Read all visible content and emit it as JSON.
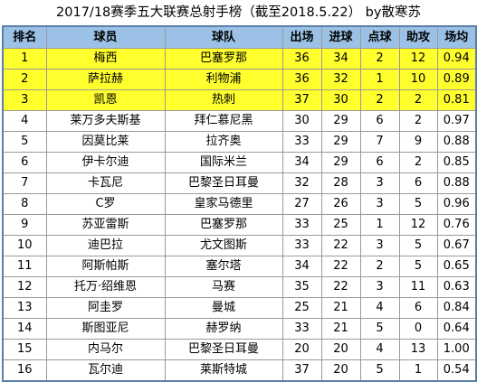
{
  "title": "2017/18赛季五大联赛总射手榜（截至2018.5.22） by散寒苏",
  "columns": [
    "排名",
    "球员",
    "球队",
    "出场",
    "进球",
    "点球",
    "助攻",
    "场均"
  ],
  "highlight_color": "#ffff2e",
  "header_color": "#9bc2e6",
  "rows": [
    {
      "rank": "1",
      "player": "梅西",
      "team": "巴塞罗那",
      "apps": "36",
      "goals": "34",
      "pens": "2",
      "assists": "12",
      "avg": "0.94",
      "hl": true
    },
    {
      "rank": "2",
      "player": "萨拉赫",
      "team": "利物浦",
      "apps": "36",
      "goals": "32",
      "pens": "1",
      "assists": "10",
      "avg": "0.89",
      "hl": true
    },
    {
      "rank": "3",
      "player": "凯恩",
      "team": "热刺",
      "apps": "37",
      "goals": "30",
      "pens": "2",
      "assists": "2",
      "avg": "0.81",
      "hl": true
    },
    {
      "rank": "4",
      "player": "莱万多夫斯基",
      "team": "拜仁慕尼黑",
      "apps": "30",
      "goals": "29",
      "pens": "6",
      "assists": "2",
      "avg": "0.97",
      "hl": false
    },
    {
      "rank": "5",
      "player": "因莫比莱",
      "team": "拉齐奥",
      "apps": "33",
      "goals": "29",
      "pens": "7",
      "assists": "9",
      "avg": "0.88",
      "hl": false
    },
    {
      "rank": "6",
      "player": "伊卡尔迪",
      "team": "国际米兰",
      "apps": "34",
      "goals": "29",
      "pens": "6",
      "assists": "2",
      "avg": "0.85",
      "hl": false
    },
    {
      "rank": "7",
      "player": "卡瓦尼",
      "team": "巴黎圣日耳曼",
      "apps": "32",
      "goals": "28",
      "pens": "3",
      "assists": "6",
      "avg": "0.88",
      "hl": false
    },
    {
      "rank": "8",
      "player": "C罗",
      "team": "皇家马德里",
      "apps": "27",
      "goals": "26",
      "pens": "3",
      "assists": "5",
      "avg": "0.96",
      "hl": false
    },
    {
      "rank": "9",
      "player": "苏亚雷斯",
      "team": "巴塞罗那",
      "apps": "33",
      "goals": "25",
      "pens": "1",
      "assists": "12",
      "avg": "0.76",
      "hl": false
    },
    {
      "rank": "10",
      "player": "迪巴拉",
      "team": "尤文图斯",
      "apps": "33",
      "goals": "22",
      "pens": "3",
      "assists": "5",
      "avg": "0.67",
      "hl": false
    },
    {
      "rank": "11",
      "player": "阿斯帕斯",
      "team": "塞尔塔",
      "apps": "34",
      "goals": "22",
      "pens": "2",
      "assists": "5",
      "avg": "0.65",
      "hl": false
    },
    {
      "rank": "12",
      "player": "托万·绍维恩",
      "team": "马赛",
      "apps": "35",
      "goals": "22",
      "pens": "3",
      "assists": "11",
      "avg": "0.63",
      "hl": false
    },
    {
      "rank": "13",
      "player": "阿圭罗",
      "team": "曼城",
      "apps": "25",
      "goals": "21",
      "pens": "4",
      "assists": "6",
      "avg": "0.84",
      "hl": false
    },
    {
      "rank": "14",
      "player": "斯图亚尼",
      "team": "赫罗纳",
      "apps": "33",
      "goals": "21",
      "pens": "5",
      "assists": "0",
      "avg": "0.64",
      "hl": false
    },
    {
      "rank": "15",
      "player": "内马尔",
      "team": "巴黎圣日耳曼",
      "apps": "20",
      "goals": "20",
      "pens": "4",
      "assists": "13",
      "avg": "1.00",
      "hl": false
    },
    {
      "rank": "16",
      "player": "瓦尔迪",
      "team": "莱斯特城",
      "apps": "37",
      "goals": "20",
      "pens": "5",
      "assists": "1",
      "avg": "0.54",
      "hl": false
    }
  ]
}
